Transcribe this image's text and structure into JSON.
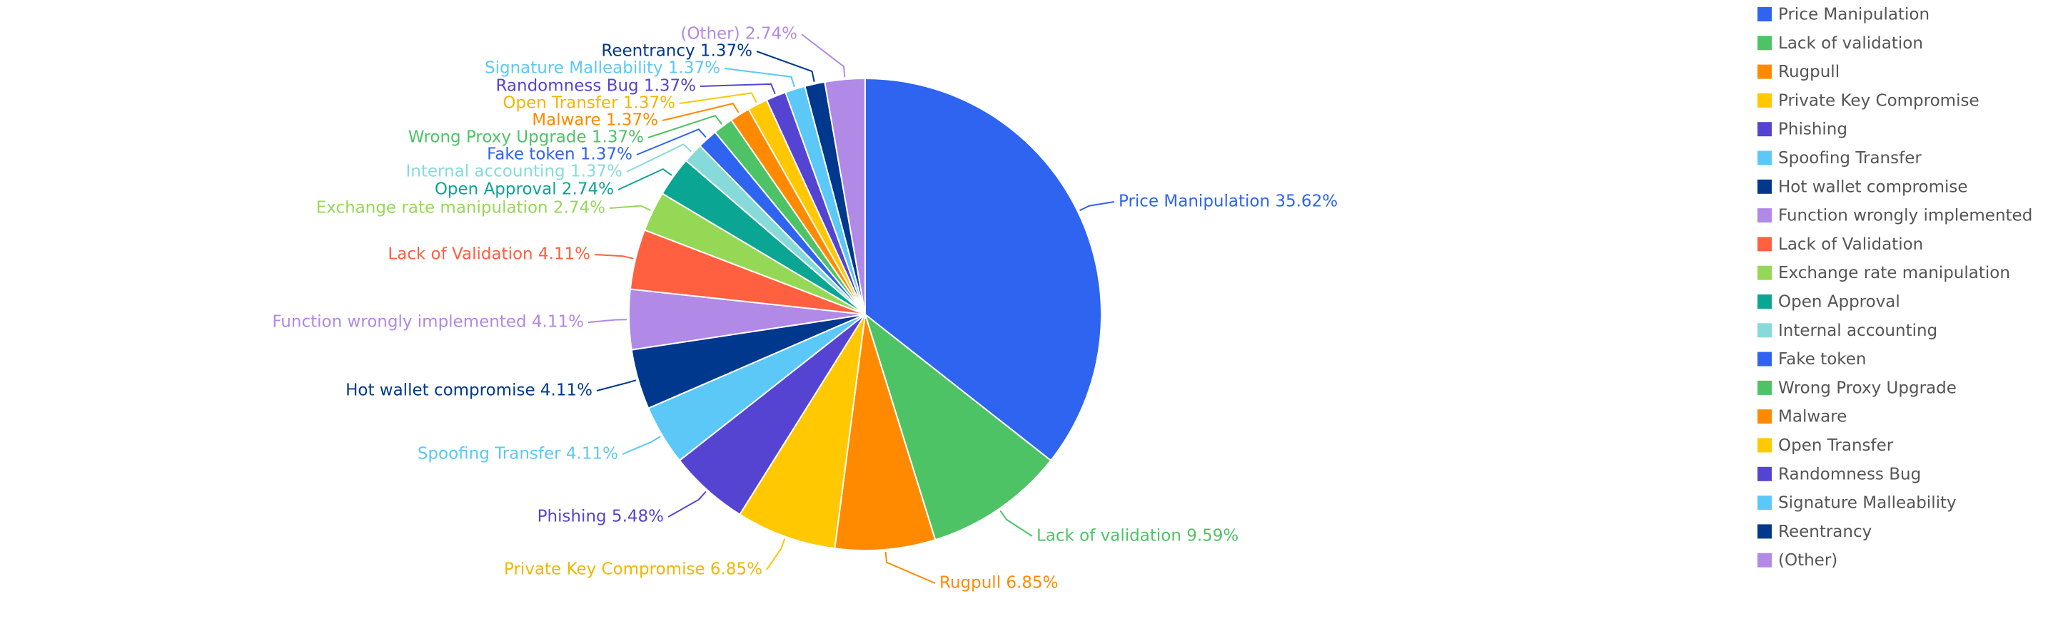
{
  "chart_data": {
    "type": "pie",
    "title": "",
    "legend_position": "right",
    "series": [
      {
        "name": "Price Manipulation",
        "value": 35.62,
        "label": "Price Manipulation 35.62%",
        "color": "#2f64f1"
      },
      {
        "name": "Lack of validation",
        "value": 9.59,
        "label": "Lack of validation 9.59%",
        "color": "#4ec366"
      },
      {
        "name": "Rugpull",
        "value": 6.85,
        "label": "Rugpull 6.85%",
        "color": "#ff8a00"
      },
      {
        "name": "Private Key Compromise",
        "value": 6.85,
        "label": "Private Key Compromise 6.85%",
        "color": "#ffc800"
      },
      {
        "name": "Phishing",
        "value": 5.48,
        "label": "Phishing 5.48%",
        "color": "#5544d1"
      },
      {
        "name": "Spoofing Transfer",
        "value": 4.11,
        "label": "Spoofing Transfer 4.11%",
        "color": "#5bc8f7"
      },
      {
        "name": "Hot wallet compromise",
        "value": 4.11,
        "label": "Hot wallet compromise 4.11%",
        "color": "#00388e"
      },
      {
        "name": "Function wrongly implemented",
        "value": 4.11,
        "label": "Function wrongly implemented 4.11%",
        "color": "#b189e6"
      },
      {
        "name": "Lack of Validation",
        "value": 4.11,
        "label": "Lack of Validation 4.11%",
        "color": "#ff6040"
      },
      {
        "name": "Exchange rate manipulation",
        "value": 2.74,
        "label": "Exchange rate manipulation 2.74%",
        "color": "#95d856"
      },
      {
        "name": "Open Approval",
        "value": 2.74,
        "label": "Open Approval 2.74%",
        "color": "#0aa593"
      },
      {
        "name": "Internal accounting",
        "value": 1.37,
        "label": "Internal accounting 1.37%",
        "color": "#86dbda"
      },
      {
        "name": "Fake token",
        "value": 1.37,
        "label": "Fake token 1.37%",
        "color": "#2f64f1"
      },
      {
        "name": "Wrong Proxy Upgrade",
        "value": 1.37,
        "label": "Wrong Proxy Upgrade 1.37%",
        "color": "#4ec366"
      },
      {
        "name": "Malware",
        "value": 1.37,
        "label": "Malware 1.37%",
        "color": "#ff8a00"
      },
      {
        "name": "Open Transfer",
        "value": 1.37,
        "label": "Open Transfer 1.37%",
        "color": "#ffc800"
      },
      {
        "name": "Randomness Bug",
        "value": 1.37,
        "label": "Randomness Bug 1.37%",
        "color": "#5544d1"
      },
      {
        "name": "Signature Malleability",
        "value": 1.37,
        "label": "Signature Malleability 1.37%",
        "color": "#5bc8f7"
      },
      {
        "name": "Reentrancy",
        "value": 1.37,
        "label": "Reentrancy 1.37%",
        "color": "#00388e"
      },
      {
        "name": "(Other)",
        "value": 2.74,
        "label": "(Other) 2.74%",
        "color": "#b189e6"
      }
    ]
  }
}
